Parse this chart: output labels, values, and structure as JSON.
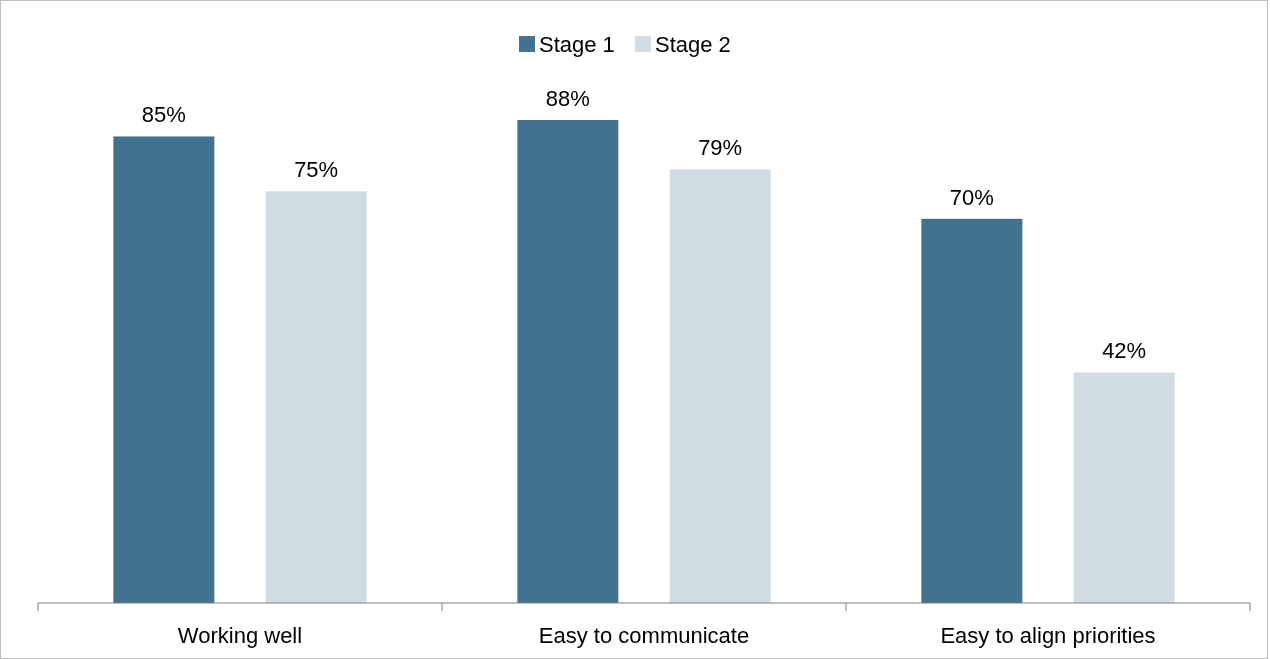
{
  "chart_data": {
    "type": "bar",
    "categories": [
      "Working well",
      "Easy to communicate",
      "Easy to align priorities"
    ],
    "series": [
      {
        "name": "Stage 1",
        "color": "#41728f",
        "values": [
          85,
          88,
          70
        ],
        "value_labels": [
          "85%",
          "88%",
          "70%"
        ]
      },
      {
        "name": "Stage 2",
        "color": "#d0dce4",
        "values": [
          75,
          79,
          42
        ],
        "value_labels": [
          "75%",
          "79%",
          "42%"
        ]
      }
    ],
    "legend": "top"
  }
}
